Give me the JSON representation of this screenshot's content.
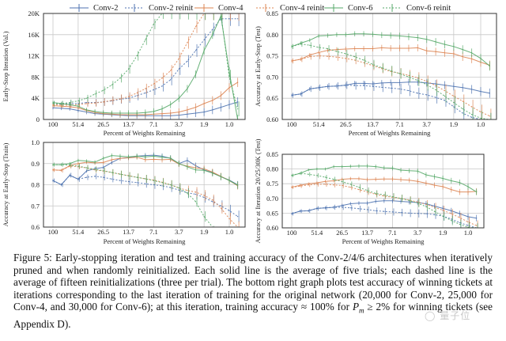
{
  "legend": [
    {
      "name": "Conv-2",
      "color": "#4c72b0",
      "dashed": false
    },
    {
      "name": "Conv-2 reinit",
      "color": "#4c72b0",
      "dashed": true
    },
    {
      "name": "Conv-4",
      "color": "#dd8452",
      "dashed": false
    },
    {
      "name": "Conv-4 reinit",
      "color": "#dd8452",
      "dashed": true
    },
    {
      "name": "Conv-6",
      "color": "#55a868",
      "dashed": false
    },
    {
      "name": "Conv-6 reinit",
      "color": "#55a868",
      "dashed": true
    }
  ],
  "chart_data": [
    {
      "id": "early-stop-iteration",
      "type": "line",
      "title": "",
      "xlabel": "Percent of Weights Remaining",
      "ylabel": "Early-Stop Iteration (Val.)",
      "xticks": [
        "100",
        "51.4",
        "26.5",
        "13.7",
        "7.1",
        "3.7",
        "1.9",
        "1.0"
      ],
      "yticks": [
        "0",
        "4K",
        "8K",
        "12K",
        "16K",
        "20K"
      ],
      "ylim": [
        0,
        20000
      ],
      "ytick_values": [
        0,
        4000,
        8000,
        12000,
        16000,
        20000
      ],
      "grid": true,
      "x": [
        100,
        80,
        64,
        51.4,
        41,
        33,
        26.5,
        21,
        17,
        13.7,
        11,
        8.8,
        7.1,
        5.7,
        4.6,
        3.7,
        2.9,
        2.3,
        1.9,
        1.5,
        1.2,
        1.0,
        0.8
      ],
      "series": [
        {
          "name": "Conv-2",
          "values": [
            2200,
            2100,
            2000,
            1700,
            1400,
            1100,
            1000,
            900,
            800,
            700,
            700,
            700,
            700,
            700,
            700,
            800,
            1000,
            1200,
            1400,
            1800,
            2300,
            2800,
            3300
          ]
        },
        {
          "name": "Conv-2 reinit",
          "values": [
            3000,
            2900,
            3000,
            3000,
            3200,
            3200,
            3300,
            3500,
            3800,
            4000,
            4500,
            5000,
            5600,
            6300,
            7500,
            9500,
            11000,
            13000,
            15000,
            17000,
            19000,
            19000,
            19000
          ]
        },
        {
          "name": "Conv-4",
          "values": [
            2600,
            2500,
            2400,
            2200,
            1700,
            1300,
            1100,
            1000,
            900,
            900,
            900,
            900,
            1000,
            1100,
            1200,
            1400,
            1800,
            2300,
            3000,
            3600,
            4500,
            6000,
            7000
          ]
        },
        {
          "name": "Conv-4 reinit",
          "values": [
            2800,
            2700,
            2700,
            2800,
            3000,
            3100,
            3300,
            3600,
            3900,
            4300,
            5000,
            5800,
            6700,
            7800,
            9200,
            11500,
            14500,
            17500,
            20000,
            20000,
            20000,
            20000,
            20000
          ]
        },
        {
          "name": "Conv-6",
          "values": [
            3200,
            3000,
            2800,
            2500,
            1800,
            1500,
            1300,
            1200,
            1200,
            1200,
            1200,
            1300,
            1500,
            2000,
            2800,
            4000,
            5800,
            8500,
            13000,
            16000,
            19500,
            9000,
            0
          ]
        },
        {
          "name": "Conv-6 reinit",
          "values": [
            3000,
            3000,
            3200,
            3500,
            4000,
            4800,
            5500,
            6500,
            7800,
            9500,
            12000,
            15000,
            18000,
            20000,
            20000,
            20000,
            20000,
            20000,
            20000,
            20000,
            20000,
            8000,
            2000
          ]
        }
      ]
    },
    {
      "id": "accuracy-early-stop-test",
      "type": "line",
      "title": "",
      "xlabel": "Percent of Weights Remaining",
      "ylabel": "Accuracy at Early-Stop (Test)",
      "xticks": [
        "100",
        "51.4",
        "26.5",
        "13.7",
        "7.1",
        "3.7",
        "1.9",
        "1.0"
      ],
      "yticks": [
        "0.60",
        "0.65",
        "0.70",
        "0.75",
        "0.80",
        "0.85"
      ],
      "ylim": [
        0.6,
        0.85
      ],
      "ytick_values": [
        0.6,
        0.65,
        0.7,
        0.75,
        0.8,
        0.85
      ],
      "grid": true,
      "x": [
        100,
        80,
        64,
        51.4,
        41,
        33,
        26.5,
        21,
        17,
        13.7,
        11,
        8.8,
        7.1,
        5.7,
        4.6,
        3.7,
        2.9,
        2.3,
        1.9,
        1.5,
        1.2,
        1.0,
        0.8
      ],
      "series": [
        {
          "name": "Conv-2",
          "values": [
            0.657,
            0.66,
            0.672,
            0.675,
            0.678,
            0.679,
            0.681,
            0.685,
            0.685,
            0.684,
            0.686,
            0.687,
            0.687,
            0.688,
            0.688,
            0.686,
            0.684,
            0.681,
            0.678,
            0.675,
            0.671,
            0.666,
            0.662
          ]
        },
        {
          "name": "Conv-2 reinit",
          "values": [
            0.657,
            0.66,
            0.672,
            0.675,
            0.678,
            0.679,
            0.681,
            0.68,
            0.68,
            0.678,
            0.676,
            0.674,
            0.672,
            0.668,
            0.662,
            0.658,
            0.652,
            0.645,
            0.63,
            0.615,
            0.605,
            0.6,
            0.598
          ]
        },
        {
          "name": "Conv-4",
          "values": [
            0.738,
            0.742,
            0.752,
            0.758,
            0.763,
            0.765,
            0.766,
            0.767,
            0.767,
            0.767,
            0.769,
            0.768,
            0.768,
            0.768,
            0.769,
            0.762,
            0.76,
            0.757,
            0.755,
            0.748,
            0.743,
            0.735,
            0.728
          ]
        },
        {
          "name": "Conv-4 reinit",
          "values": [
            0.738,
            0.742,
            0.748,
            0.75,
            0.749,
            0.747,
            0.744,
            0.74,
            0.734,
            0.727,
            0.72,
            0.713,
            0.709,
            0.704,
            0.698,
            0.69,
            0.68,
            0.668,
            0.655,
            0.643,
            0.63,
            0.618,
            0.608
          ]
        },
        {
          "name": "Conv-6",
          "values": [
            0.772,
            0.78,
            0.787,
            0.797,
            0.798,
            0.8,
            0.8,
            0.802,
            0.802,
            0.801,
            0.799,
            0.798,
            0.797,
            0.795,
            0.793,
            0.789,
            0.783,
            0.777,
            0.772,
            0.765,
            0.757,
            0.744,
            0.726
          ]
        },
        {
          "name": "Conv-6 reinit",
          "values": [
            0.772,
            0.778,
            0.775,
            0.77,
            0.767,
            0.76,
            0.755,
            0.748,
            0.74,
            0.73,
            0.722,
            0.715,
            0.708,
            0.7,
            0.692,
            0.682,
            0.67,
            0.655,
            0.64,
            0.625,
            0.612,
            0.603,
            0.598
          ]
        }
      ]
    },
    {
      "id": "accuracy-early-stop-train",
      "type": "line",
      "title": "",
      "xlabel": "Percent of Weights Remaining",
      "ylabel": "Accuracy at Early-Stop (Train)",
      "xticks": [
        "100",
        "51.4",
        "26.5",
        "13.7",
        "7.1",
        "3.7",
        "1.9",
        "1.0"
      ],
      "yticks": [
        "0.6",
        "0.7",
        "0.8",
        "0.9",
        "1.0"
      ],
      "ylim": [
        0.6,
        1.0
      ],
      "ytick_values": [
        0.6,
        0.7,
        0.8,
        0.9,
        1.0
      ],
      "grid": true,
      "x": [
        100,
        80,
        64,
        51.4,
        41,
        33,
        26.5,
        21,
        17,
        13.7,
        11,
        8.8,
        7.1,
        5.7,
        4.6,
        3.7,
        2.9,
        2.3,
        1.9,
        1.5,
        1.2,
        1.0,
        0.8
      ],
      "series": [
        {
          "name": "Conv-2",
          "values": [
            0.82,
            0.8,
            0.845,
            0.826,
            0.865,
            0.876,
            0.882,
            0.905,
            0.925,
            0.928,
            0.935,
            0.938,
            0.94,
            0.935,
            0.925,
            0.9,
            0.915,
            0.89,
            0.87,
            0.857,
            0.838,
            0.822,
            0.8
          ]
        },
        {
          "name": "Conv-2 reinit",
          "values": [
            0.82,
            0.8,
            0.845,
            0.826,
            0.835,
            0.84,
            0.835,
            0.827,
            0.82,
            0.815,
            0.81,
            0.805,
            0.8,
            0.795,
            0.787,
            0.775,
            0.762,
            0.755,
            0.74,
            0.72,
            0.7,
            0.678,
            0.65
          ]
        },
        {
          "name": "Conv-4",
          "values": [
            0.87,
            0.868,
            0.89,
            0.9,
            0.906,
            0.903,
            0.905,
            0.918,
            0.925,
            0.927,
            0.93,
            0.918,
            0.92,
            0.918,
            0.92,
            0.898,
            0.888,
            0.88,
            0.875,
            0.86,
            0.84,
            0.82,
            0.795
          ]
        },
        {
          "name": "Conv-4 reinit",
          "values": [
            0.87,
            0.868,
            0.888,
            0.885,
            0.88,
            0.87,
            0.865,
            0.858,
            0.85,
            0.843,
            0.835,
            0.828,
            0.822,
            0.812,
            0.8,
            0.785,
            0.773,
            0.765,
            0.75,
            0.728,
            0.69,
            0.64,
            0.6
          ]
        },
        {
          "name": "Conv-6",
          "values": [
            0.895,
            0.895,
            0.9,
            0.915,
            0.912,
            0.907,
            0.925,
            0.938,
            0.935,
            0.932,
            0.935,
            0.932,
            0.935,
            0.93,
            0.926,
            0.9,
            0.885,
            0.87,
            0.868,
            0.855,
            0.838,
            0.82,
            0.798
          ]
        },
        {
          "name": "Conv-6 reinit",
          "values": [
            0.895,
            0.895,
            0.893,
            0.888,
            0.88,
            0.873,
            0.866,
            0.858,
            0.85,
            0.842,
            0.835,
            0.828,
            0.82,
            0.81,
            0.8,
            0.785,
            0.76,
            0.72,
            0.65,
            0.58,
            0.56,
            0.55,
            0.55
          ]
        }
      ]
    },
    {
      "id": "accuracy-at-iteration-test",
      "type": "line",
      "title": "",
      "xlabel": "Percent of Weights Remaining",
      "ylabel": "Accuracy at Iteration 20/25/30K (Test)",
      "xticks": [
        "100",
        "51.4",
        "26.5",
        "13.7",
        "7.1",
        "3.7",
        "1.9",
        "1.0"
      ],
      "yticks": [
        "0.60",
        "0.65",
        "0.70",
        "0.75",
        "0.80",
        "0.85"
      ],
      "ylim": [
        0.6,
        0.85
      ],
      "ytick_values": [
        0.6,
        0.65,
        0.7,
        0.75,
        0.8,
        0.85
      ],
      "grid": true,
      "x": [
        100,
        80,
        64,
        51.4,
        41,
        33,
        26.5,
        21,
        17,
        13.7,
        11,
        8.8,
        7.1,
        5.7,
        4.6,
        3.7,
        2.9,
        2.3,
        1.9,
        1.5,
        1.2,
        1.0,
        0.8
      ],
      "series": [
        {
          "name": "Conv-2",
          "values": [
            0.648,
            0.657,
            0.658,
            0.666,
            0.668,
            0.67,
            0.676,
            0.682,
            0.684,
            0.684,
            0.69,
            0.692,
            0.692,
            0.69,
            0.688,
            0.686,
            0.682,
            0.674,
            0.666,
            0.658,
            0.648,
            0.638,
            0.633
          ]
        },
        {
          "name": "Conv-2 reinit",
          "values": [
            0.648,
            0.657,
            0.658,
            0.666,
            0.668,
            0.67,
            0.67,
            0.668,
            0.665,
            0.662,
            0.658,
            0.656,
            0.654,
            0.652,
            0.65,
            0.649,
            0.648,
            0.645,
            0.64,
            0.63,
            0.618,
            0.608,
            0.6
          ]
        },
        {
          "name": "Conv-4",
          "values": [
            0.738,
            0.745,
            0.75,
            0.753,
            0.758,
            0.76,
            0.765,
            0.767,
            0.767,
            0.764,
            0.765,
            0.766,
            0.766,
            0.764,
            0.762,
            0.758,
            0.752,
            0.745,
            0.74,
            0.73,
            0.722,
            0.722,
            0.724
          ]
        },
        {
          "name": "Conv-4 reinit",
          "values": [
            0.738,
            0.742,
            0.746,
            0.748,
            0.748,
            0.746,
            0.744,
            0.738,
            0.73,
            0.722,
            0.714,
            0.708,
            0.704,
            0.7,
            0.694,
            0.688,
            0.68,
            0.67,
            0.66,
            0.648,
            0.635,
            0.62,
            0.608
          ]
        },
        {
          "name": "Conv-6",
          "values": [
            0.778,
            0.785,
            0.797,
            0.8,
            0.8,
            0.808,
            0.808,
            0.809,
            0.81,
            0.81,
            0.808,
            0.804,
            0.803,
            0.796,
            0.794,
            0.793,
            0.78,
            0.774,
            0.768,
            0.76,
            0.754,
            0.74,
            0.722
          ]
        },
        {
          "name": "Conv-6 reinit",
          "values": [
            0.778,
            0.786,
            0.782,
            0.778,
            0.772,
            0.765,
            0.757,
            0.748,
            0.738,
            0.727,
            0.717,
            0.712,
            0.706,
            0.7,
            0.693,
            0.684,
            0.672,
            0.656,
            0.64,
            0.625,
            0.612,
            0.602,
            0.598
          ]
        }
      ]
    }
  ],
  "caption": {
    "label": "Figure 5:",
    "text_1": " Early-stopping iteration and test and training accuracy of the Conv-2/4/6 architectures when iteratively pruned and when randomly reinitialized. Each solid line is the average of five trials; each dashed line is the average of fifteen reinitializations (three per trial). The bottom right graph plots test accuracy of winning tickets at iterations corresponding to the last iteration of training for the original network (20,000 for Conv-2, 25,000 for Conv-4, and 30,000 for Conv-6); at this iteration, training accuracy ≈ 100% for ",
    "math_p": "P",
    "math_sub": "m",
    "text_2": " ≥ 2% for winning tickets (see Appendix D)."
  },
  "watermark": "量子位"
}
